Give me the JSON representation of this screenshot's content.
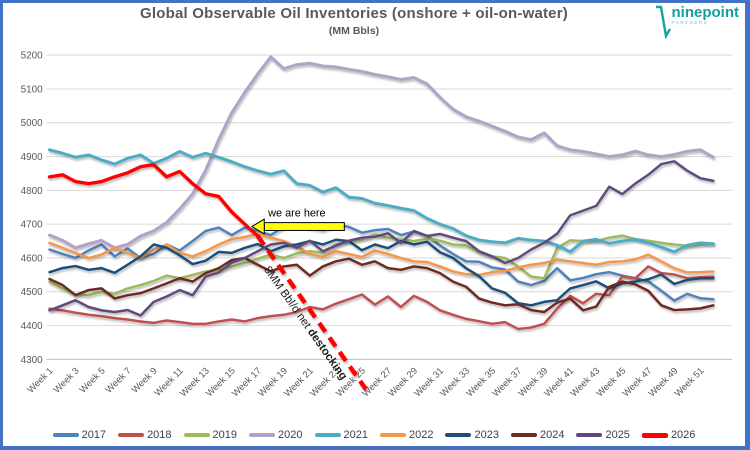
{
  "header": {
    "title": "Global Observable Oil Inventories (onshore + oil-on-water)",
    "subtitle": "(MM Bbls)"
  },
  "logo": {
    "name": "ninepoint",
    "tagline": "PARTNERS",
    "color": "#14A09E"
  },
  "chart_data": {
    "type": "line",
    "title": "Global Observable Oil Inventories (onshore + oil-on-water)",
    "subtitle": "(MM Bbls)",
    "xlabel": "",
    "ylabel": "",
    "ylim": [
      4300,
      5200
    ],
    "grid": true,
    "legend_position": "bottom",
    "y_ticks": [
      4300,
      4400,
      4500,
      4600,
      4700,
      4800,
      4900,
      5000,
      5100,
      5200
    ],
    "x_tick_labels": [
      "Week 1",
      "Week 3",
      "Week 5",
      "Week 7",
      "Week 9",
      "Week 11",
      "Week 13",
      "Week 15",
      "Week 17",
      "Week 19",
      "Week 21",
      "Week 23",
      "Week 25",
      "Week 27",
      "Week 29",
      "Week 31",
      "Week 33",
      "Week 35",
      "Week 37",
      "Week 39",
      "Week 41",
      "Week 43",
      "Week 45",
      "Week 47",
      "Week 49",
      "Week 51"
    ],
    "weeks": 52,
    "series": [
      {
        "name": "2017",
        "color": "#4F81BD",
        "width": 2.5,
        "values": [
          4625,
          4612,
          4600,
          4622,
          4640,
          4605,
          4628,
          4600,
          4612,
          4640,
          4622,
          4650,
          4680,
          4690,
          4668,
          4690,
          4680,
          4668,
          4692,
          4700,
          4690,
          4682,
          4700,
          4692,
          4675,
          4682,
          4686,
          4668,
          4678,
          4666,
          4637,
          4612,
          4590,
          4589,
          4572,
          4566,
          4530,
          4520,
          4532,
          4570,
          4534,
          4541,
          4552,
          4558,
          4548,
          4540,
          4531,
          4503,
          4474,
          4494,
          4481,
          4478
        ]
      },
      {
        "name": "2018",
        "color": "#C0504D",
        "width": 2.5,
        "values": [
          4450,
          4445,
          4438,
          4432,
          4428,
          4422,
          4418,
          4412,
          4408,
          4415,
          4410,
          4405,
          4405,
          4412,
          4418,
          4412,
          4422,
          4428,
          4432,
          4440,
          4455,
          4448,
          4465,
          4478,
          4492,
          4462,
          4486,
          4455,
          4488,
          4470,
          4445,
          4432,
          4420,
          4413,
          4405,
          4410,
          4390,
          4394,
          4405,
          4450,
          4488,
          4466,
          4494,
          4490,
          4545,
          4540,
          4575,
          4555,
          4551,
          4540,
          4543,
          4545
        ]
      },
      {
        "name": "2019",
        "color": "#9BBB59",
        "width": 2.5,
        "values": [
          4530,
          4510,
          4492,
          4490,
          4500,
          4494,
          4510,
          4520,
          4532,
          4548,
          4540,
          4550,
          4560,
          4565,
          4575,
          4585,
          4598,
          4610,
          4600,
          4614,
          4620,
          4616,
          4640,
          4650,
          4655,
          4670,
          4660,
          4655,
          4650,
          4657,
          4651,
          4640,
          4637,
          4617,
          4605,
          4600,
          4575,
          4545,
          4540,
          4630,
          4652,
          4650,
          4650,
          4660,
          4666,
          4656,
          4651,
          4645,
          4640,
          4636,
          4640,
          4643
        ]
      },
      {
        "name": "2020",
        "color": "#B2A2C7",
        "width": 3,
        "values": [
          4668,
          4652,
          4630,
          4642,
          4652,
          4630,
          4640,
          4665,
          4680,
          4705,
          4745,
          4790,
          4860,
          4950,
          5030,
          5090,
          5145,
          5195,
          5160,
          5172,
          5176,
          5168,
          5165,
          5158,
          5152,
          5143,
          5136,
          5128,
          5134,
          5115,
          5075,
          5040,
          5018,
          5005,
          4990,
          4975,
          4958,
          4950,
          4970,
          4932,
          4920,
          4915,
          4908,
          4900,
          4905,
          4916,
          4905,
          4900,
          4906,
          4916,
          4920,
          4898
        ]
      },
      {
        "name": "2021",
        "color": "#4BACC6",
        "width": 3,
        "values": [
          4920,
          4910,
          4898,
          4905,
          4890,
          4878,
          4895,
          4905,
          4880,
          4895,
          4915,
          4898,
          4910,
          4898,
          4885,
          4870,
          4858,
          4848,
          4858,
          4820,
          4815,
          4795,
          4808,
          4780,
          4776,
          4762,
          4755,
          4747,
          4740,
          4717,
          4700,
          4687,
          4666,
          4653,
          4648,
          4645,
          4658,
          4653,
          4650,
          4638,
          4618,
          4650,
          4655,
          4643,
          4650,
          4655,
          4645,
          4632,
          4618,
          4638,
          4645,
          4642
        ]
      },
      {
        "name": "2022",
        "color": "#F79646",
        "width": 2.5,
        "values": [
          4645,
          4630,
          4615,
          4600,
          4610,
          4630,
          4615,
          4600,
          4625,
          4640,
          4615,
          4605,
          4620,
          4640,
          4656,
          4662,
          4672,
          4660,
          4650,
          4635,
          4612,
          4603,
          4620,
          4612,
          4603,
          4622,
          4612,
          4600,
          4590,
          4588,
          4575,
          4560,
          4552,
          4550,
          4558,
          4562,
          4572,
          4580,
          4585,
          4595,
          4590,
          4585,
          4580,
          4588,
          4590,
          4596,
          4610,
          4590,
          4570,
          4557,
          4558,
          4560
        ]
      },
      {
        "name": "2023",
        "color": "#1F4E79",
        "width": 2.5,
        "values": [
          4558,
          4570,
          4576,
          4565,
          4570,
          4556,
          4580,
          4605,
          4640,
          4630,
          4608,
          4582,
          4592,
          4618,
          4615,
          4630,
          4641,
          4620,
          4634,
          4640,
          4650,
          4640,
          4654,
          4650,
          4623,
          4640,
          4629,
          4650,
          4640,
          4648,
          4617,
          4600,
          4570,
          4546,
          4510,
          4497,
          4466,
          4460,
          4470,
          4475,
          4510,
          4520,
          4531,
          4510,
          4525,
          4530,
          4537,
          4551,
          4523,
          4535,
          4540,
          4540
        ]
      },
      {
        "name": "2024",
        "color": "#6E2B23",
        "width": 2.5,
        "values": [
          4538,
          4520,
          4490,
          4505,
          4510,
          4480,
          4490,
          4496,
          4510,
          4525,
          4540,
          4530,
          4555,
          4570,
          4594,
          4600,
          4580,
          4560,
          4575,
          4580,
          4548,
          4575,
          4590,
          4598,
          4580,
          4590,
          4570,
          4565,
          4575,
          4570,
          4555,
          4530,
          4515,
          4480,
          4468,
          4460,
          4463,
          4446,
          4440,
          4468,
          4480,
          4445,
          4456,
          4515,
          4530,
          4522,
          4503,
          4460,
          4446,
          4448,
          4451,
          4460
        ]
      },
      {
        "name": "2025",
        "color": "#604A7B",
        "width": 2.5,
        "values": [
          4445,
          4460,
          4475,
          4455,
          4445,
          4440,
          4446,
          4430,
          4470,
          4486,
          4505,
          4490,
          4545,
          4557,
          4586,
          4600,
          4620,
          4640,
          4645,
          4630,
          4651,
          4620,
          4636,
          4651,
          4660,
          4663,
          4673,
          4645,
          4680,
          4665,
          4671,
          4660,
          4650,
          4620,
          4605,
          4585,
          4600,
          4625,
          4645,
          4672,
          4726,
          4740,
          4754,
          4811,
          4789,
          4820,
          4846,
          4878,
          4886,
          4858,
          4836,
          4828
        ]
      },
      {
        "name": "2026",
        "color": "#FF0000",
        "width": 3.4,
        "values": [
          4840,
          4846,
          4826,
          4820,
          4826,
          4840,
          4852,
          4870,
          4876,
          4840,
          4856,
          4820,
          4790,
          4782,
          4736,
          4700,
          4665,
          null,
          null,
          null,
          null,
          null,
          null,
          null,
          null,
          null,
          null,
          null,
          null,
          null,
          null,
          null,
          null,
          null,
          null,
          null,
          null,
          null,
          null,
          null,
          null,
          null,
          null,
          null,
          null,
          null,
          null,
          null,
          null,
          null,
          null,
          null
        ]
      }
    ],
    "annotations": {
      "we_are_here": {
        "label": "we are here",
        "text_week": 17.8,
        "text_value": 4723,
        "arrow_tip_week": 16.55,
        "arrow_start_week": 23.65,
        "arrow_value": 4693,
        "arrow_fill": "#FFFF00",
        "arrow_stroke": "#000000"
      },
      "destocking": {
        "text_regular": "8MM Bbl/d net ",
        "text_bold": "destocking",
        "anchor_week": 17.45,
        "anchor_value": 4566,
        "angle_deg": 55
      },
      "dashed_projection": {
        "from_week": 17,
        "from_value": 4665,
        "to_week": 25.3,
        "to_value": 4212,
        "color": "#FF0000"
      }
    }
  }
}
